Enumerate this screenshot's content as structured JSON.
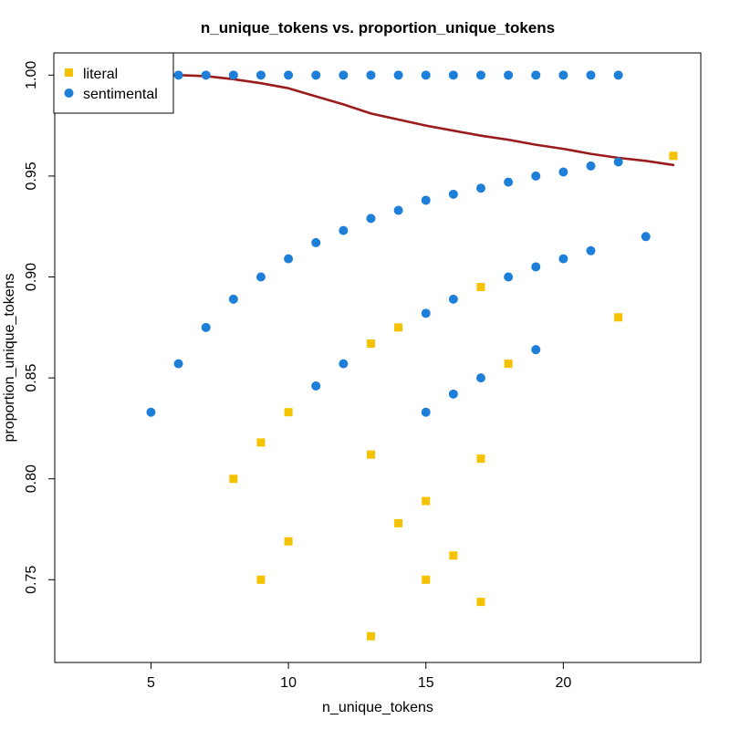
{
  "chart_data": {
    "type": "scatter",
    "title": "n_unique_tokens vs. proportion_unique_tokens",
    "xlabel": "n_unique_tokens",
    "ylabel": "proportion_unique_tokens",
    "xlim": [
      1.5,
      25
    ],
    "ylim": [
      0.709,
      1.011
    ],
    "xticks": [
      5,
      10,
      15,
      20
    ],
    "yticks": [
      0.75,
      0.8,
      0.85,
      0.9,
      0.95,
      1.0
    ],
    "ytick_labels": [
      "0.75",
      "0.80",
      "0.85",
      "0.90",
      "0.95",
      "1.00"
    ],
    "grid": false,
    "legend": {
      "position": "top-left",
      "entries": [
        "literal",
        "sentimental"
      ]
    },
    "series": [
      {
        "name": "literal",
        "marker": "square",
        "color": "#F5C200",
        "points": [
          [
            8,
            0.8
          ],
          [
            9,
            0.818
          ],
          [
            9,
            0.75
          ],
          [
            10,
            0.833
          ],
          [
            10,
            0.769
          ],
          [
            13,
            0.867
          ],
          [
            13,
            0.812
          ],
          [
            13,
            0.722
          ],
          [
            14,
            0.875
          ],
          [
            14,
            0.778
          ],
          [
            15,
            0.789
          ],
          [
            15,
            0.75
          ],
          [
            16,
            0.762
          ],
          [
            17,
            0.895
          ],
          [
            17,
            0.81
          ],
          [
            17,
            0.739
          ],
          [
            18,
            0.857
          ],
          [
            22,
            0.88
          ],
          [
            24,
            0.96
          ]
        ]
      },
      {
        "name": "sentimental",
        "marker": "circle",
        "color": "#1E7FD8",
        "points": [
          [
            6,
            1.0
          ],
          [
            7,
            1.0
          ],
          [
            8,
            1.0
          ],
          [
            9,
            1.0
          ],
          [
            10,
            1.0
          ],
          [
            11,
            1.0
          ],
          [
            12,
            1.0
          ],
          [
            13,
            1.0
          ],
          [
            14,
            1.0
          ],
          [
            15,
            1.0
          ],
          [
            16,
            1.0
          ],
          [
            17,
            1.0
          ],
          [
            18,
            1.0
          ],
          [
            19,
            1.0
          ],
          [
            20,
            1.0
          ],
          [
            21,
            1.0
          ],
          [
            22,
            1.0
          ],
          [
            5,
            0.833
          ],
          [
            6,
            0.857
          ],
          [
            7,
            0.875
          ],
          [
            8,
            0.889
          ],
          [
            9,
            0.9
          ],
          [
            10,
            0.909
          ],
          [
            11,
            0.917
          ],
          [
            12,
            0.923
          ],
          [
            13,
            0.929
          ],
          [
            14,
            0.933
          ],
          [
            15,
            0.938
          ],
          [
            16,
            0.941
          ],
          [
            17,
            0.944
          ],
          [
            18,
            0.947
          ],
          [
            19,
            0.95
          ],
          [
            20,
            0.952
          ],
          [
            21,
            0.955
          ],
          [
            22,
            0.957
          ],
          [
            11,
            0.846
          ],
          [
            12,
            0.857
          ],
          [
            15,
            0.882
          ],
          [
            16,
            0.889
          ],
          [
            18,
            0.9
          ],
          [
            19,
            0.905
          ],
          [
            20,
            0.909
          ],
          [
            21,
            0.913
          ],
          [
            23,
            0.92
          ],
          [
            15,
            0.833
          ],
          [
            16,
            0.842
          ],
          [
            17,
            0.85
          ],
          [
            19,
            0.864
          ]
        ]
      }
    ],
    "trend_line": {
      "color": "#9B1C1C",
      "points": [
        [
          5,
          1.0
        ],
        [
          6,
          1.0
        ],
        [
          7,
          0.9995
        ],
        [
          8,
          0.998
        ],
        [
          9,
          0.996
        ],
        [
          10,
          0.9935
        ],
        [
          11,
          0.9895
        ],
        [
          12,
          0.9855
        ],
        [
          13,
          0.981
        ],
        [
          14,
          0.978
        ],
        [
          15,
          0.975
        ],
        [
          16,
          0.9725
        ],
        [
          17,
          0.97
        ],
        [
          18,
          0.968
        ],
        [
          19,
          0.9655
        ],
        [
          20,
          0.9635
        ],
        [
          21,
          0.961
        ],
        [
          22,
          0.959
        ],
        [
          23,
          0.9575
        ],
        [
          24,
          0.9555
        ]
      ]
    }
  }
}
